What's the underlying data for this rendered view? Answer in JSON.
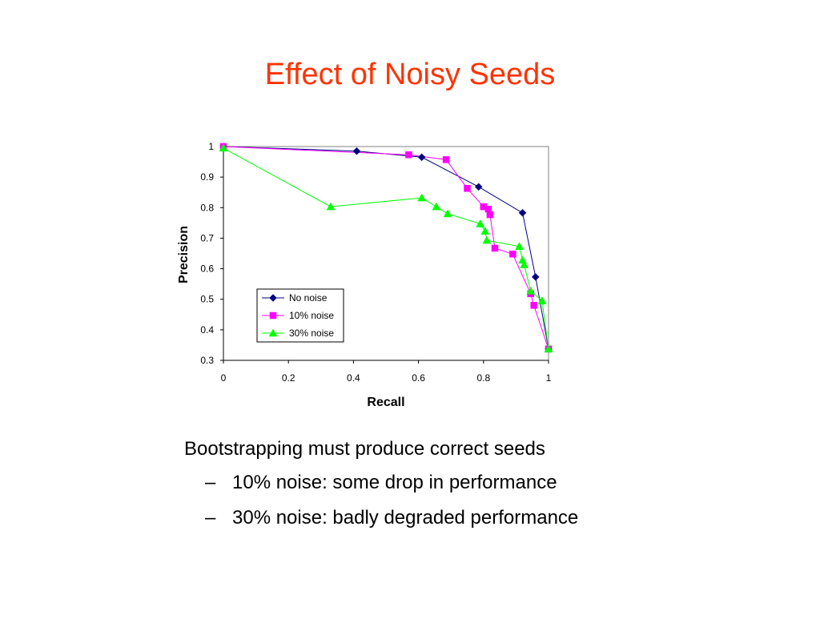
{
  "slide": {
    "title": "Effect of Noisy Seeds",
    "bullets": {
      "main": "Bootstrapping must produce correct seeds",
      "dash": "–",
      "sub": [
        "10% noise: some drop in performance",
        "30% noise: badly degraded performance"
      ]
    }
  },
  "chart_data": {
    "type": "line",
    "title": "",
    "xlabel": "Recall",
    "ylabel": "Precision",
    "xlim": [
      0,
      1
    ],
    "ylim": [
      0.3,
      1
    ],
    "xticks": [
      "0",
      "0.2",
      "0.4",
      "0.6",
      "0.8",
      "1"
    ],
    "yticks": [
      "0.3",
      "0.4",
      "0.5",
      "0.6",
      "0.7",
      "0.8",
      "0.9",
      "1"
    ],
    "grid": false,
    "legend_position": "lower-left inside plot",
    "series": [
      {
        "name": "No noise",
        "color": "#000080",
        "marker": "diamond",
        "points": [
          [
            0.0,
            1.0
          ],
          [
            0.41,
            0.985
          ],
          [
            0.61,
            0.965
          ],
          [
            0.785,
            0.868
          ],
          [
            0.92,
            0.783
          ],
          [
            0.96,
            0.573
          ],
          [
            1.0,
            0.337
          ]
        ]
      },
      {
        "name": "10% noise",
        "color": "#ff00ff",
        "marker": "square",
        "points": [
          [
            0.0,
            1.0
          ],
          [
            0.57,
            0.973
          ],
          [
            0.685,
            0.957
          ],
          [
            0.75,
            0.863
          ],
          [
            0.8,
            0.803
          ],
          [
            0.815,
            0.795
          ],
          [
            0.82,
            0.777
          ],
          [
            0.835,
            0.667
          ],
          [
            0.89,
            0.648
          ],
          [
            0.945,
            0.518
          ],
          [
            0.955,
            0.48
          ],
          [
            1.0,
            0.337
          ]
        ]
      },
      {
        "name": "30% noise",
        "color": "#00ff00",
        "marker": "triangle",
        "points": [
          [
            0.0,
            0.995
          ],
          [
            0.33,
            0.803
          ],
          [
            0.61,
            0.832
          ],
          [
            0.655,
            0.803
          ],
          [
            0.69,
            0.78
          ],
          [
            0.79,
            0.747
          ],
          [
            0.805,
            0.723
          ],
          [
            0.81,
            0.693
          ],
          [
            0.91,
            0.673
          ],
          [
            0.92,
            0.628
          ],
          [
            0.925,
            0.613
          ],
          [
            0.945,
            0.527
          ],
          [
            0.98,
            0.495
          ],
          [
            1.0,
            0.337
          ]
        ]
      }
    ]
  }
}
